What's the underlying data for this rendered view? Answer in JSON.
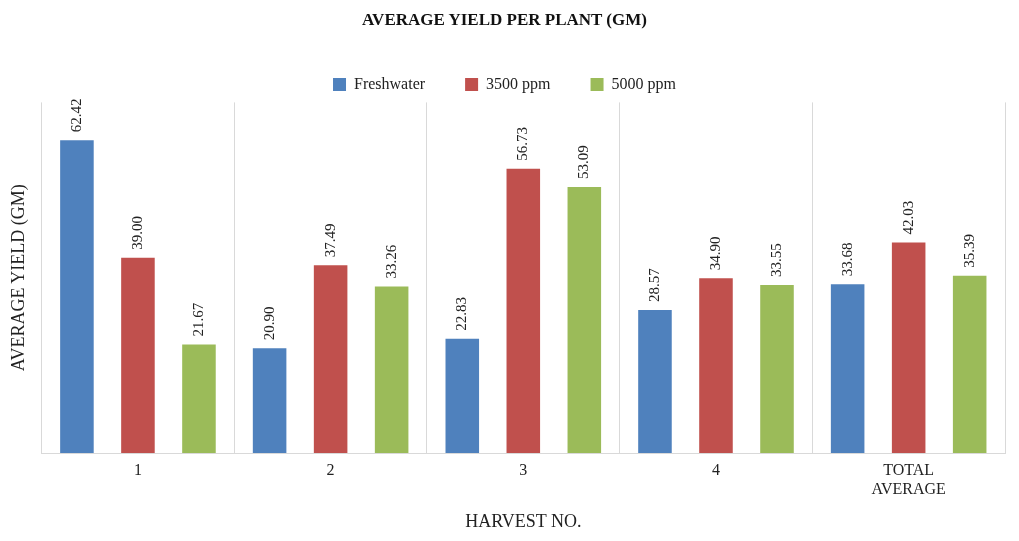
{
  "chart_data": {
    "type": "bar",
    "title": "AVERAGE YIELD PER PLANT (GM)",
    "xlabel": "HARVEST NO.",
    "ylabel": "AVERAGE YIELD (GM)",
    "categories": [
      "1",
      "2",
      "3",
      "4",
      "TOTAL AVERAGE"
    ],
    "series": [
      {
        "name": "Freshwater",
        "color": "#4f81bd",
        "values": [
          62.42,
          20.9,
          22.83,
          28.57,
          33.68
        ],
        "value_labels": [
          "62.42",
          "20.90",
          "22.83",
          "28.57",
          "33.68"
        ]
      },
      {
        "name": "3500 ppm",
        "color": "#c0504d",
        "values": [
          39.0,
          37.49,
          56.73,
          34.9,
          42.03
        ],
        "value_labels": [
          "39.00",
          "37.49",
          "56.73",
          "34.90",
          "42.03"
        ]
      },
      {
        "name": "5000 ppm",
        "color": "#9bbb59",
        "values": [
          21.67,
          33.26,
          53.09,
          33.55,
          35.39
        ],
        "value_labels": [
          "21.67",
          "33.26",
          "53.09",
          "33.55",
          "35.39"
        ]
      }
    ],
    "grid": "x",
    "legend": "top",
    "tick_labels": "x"
  }
}
